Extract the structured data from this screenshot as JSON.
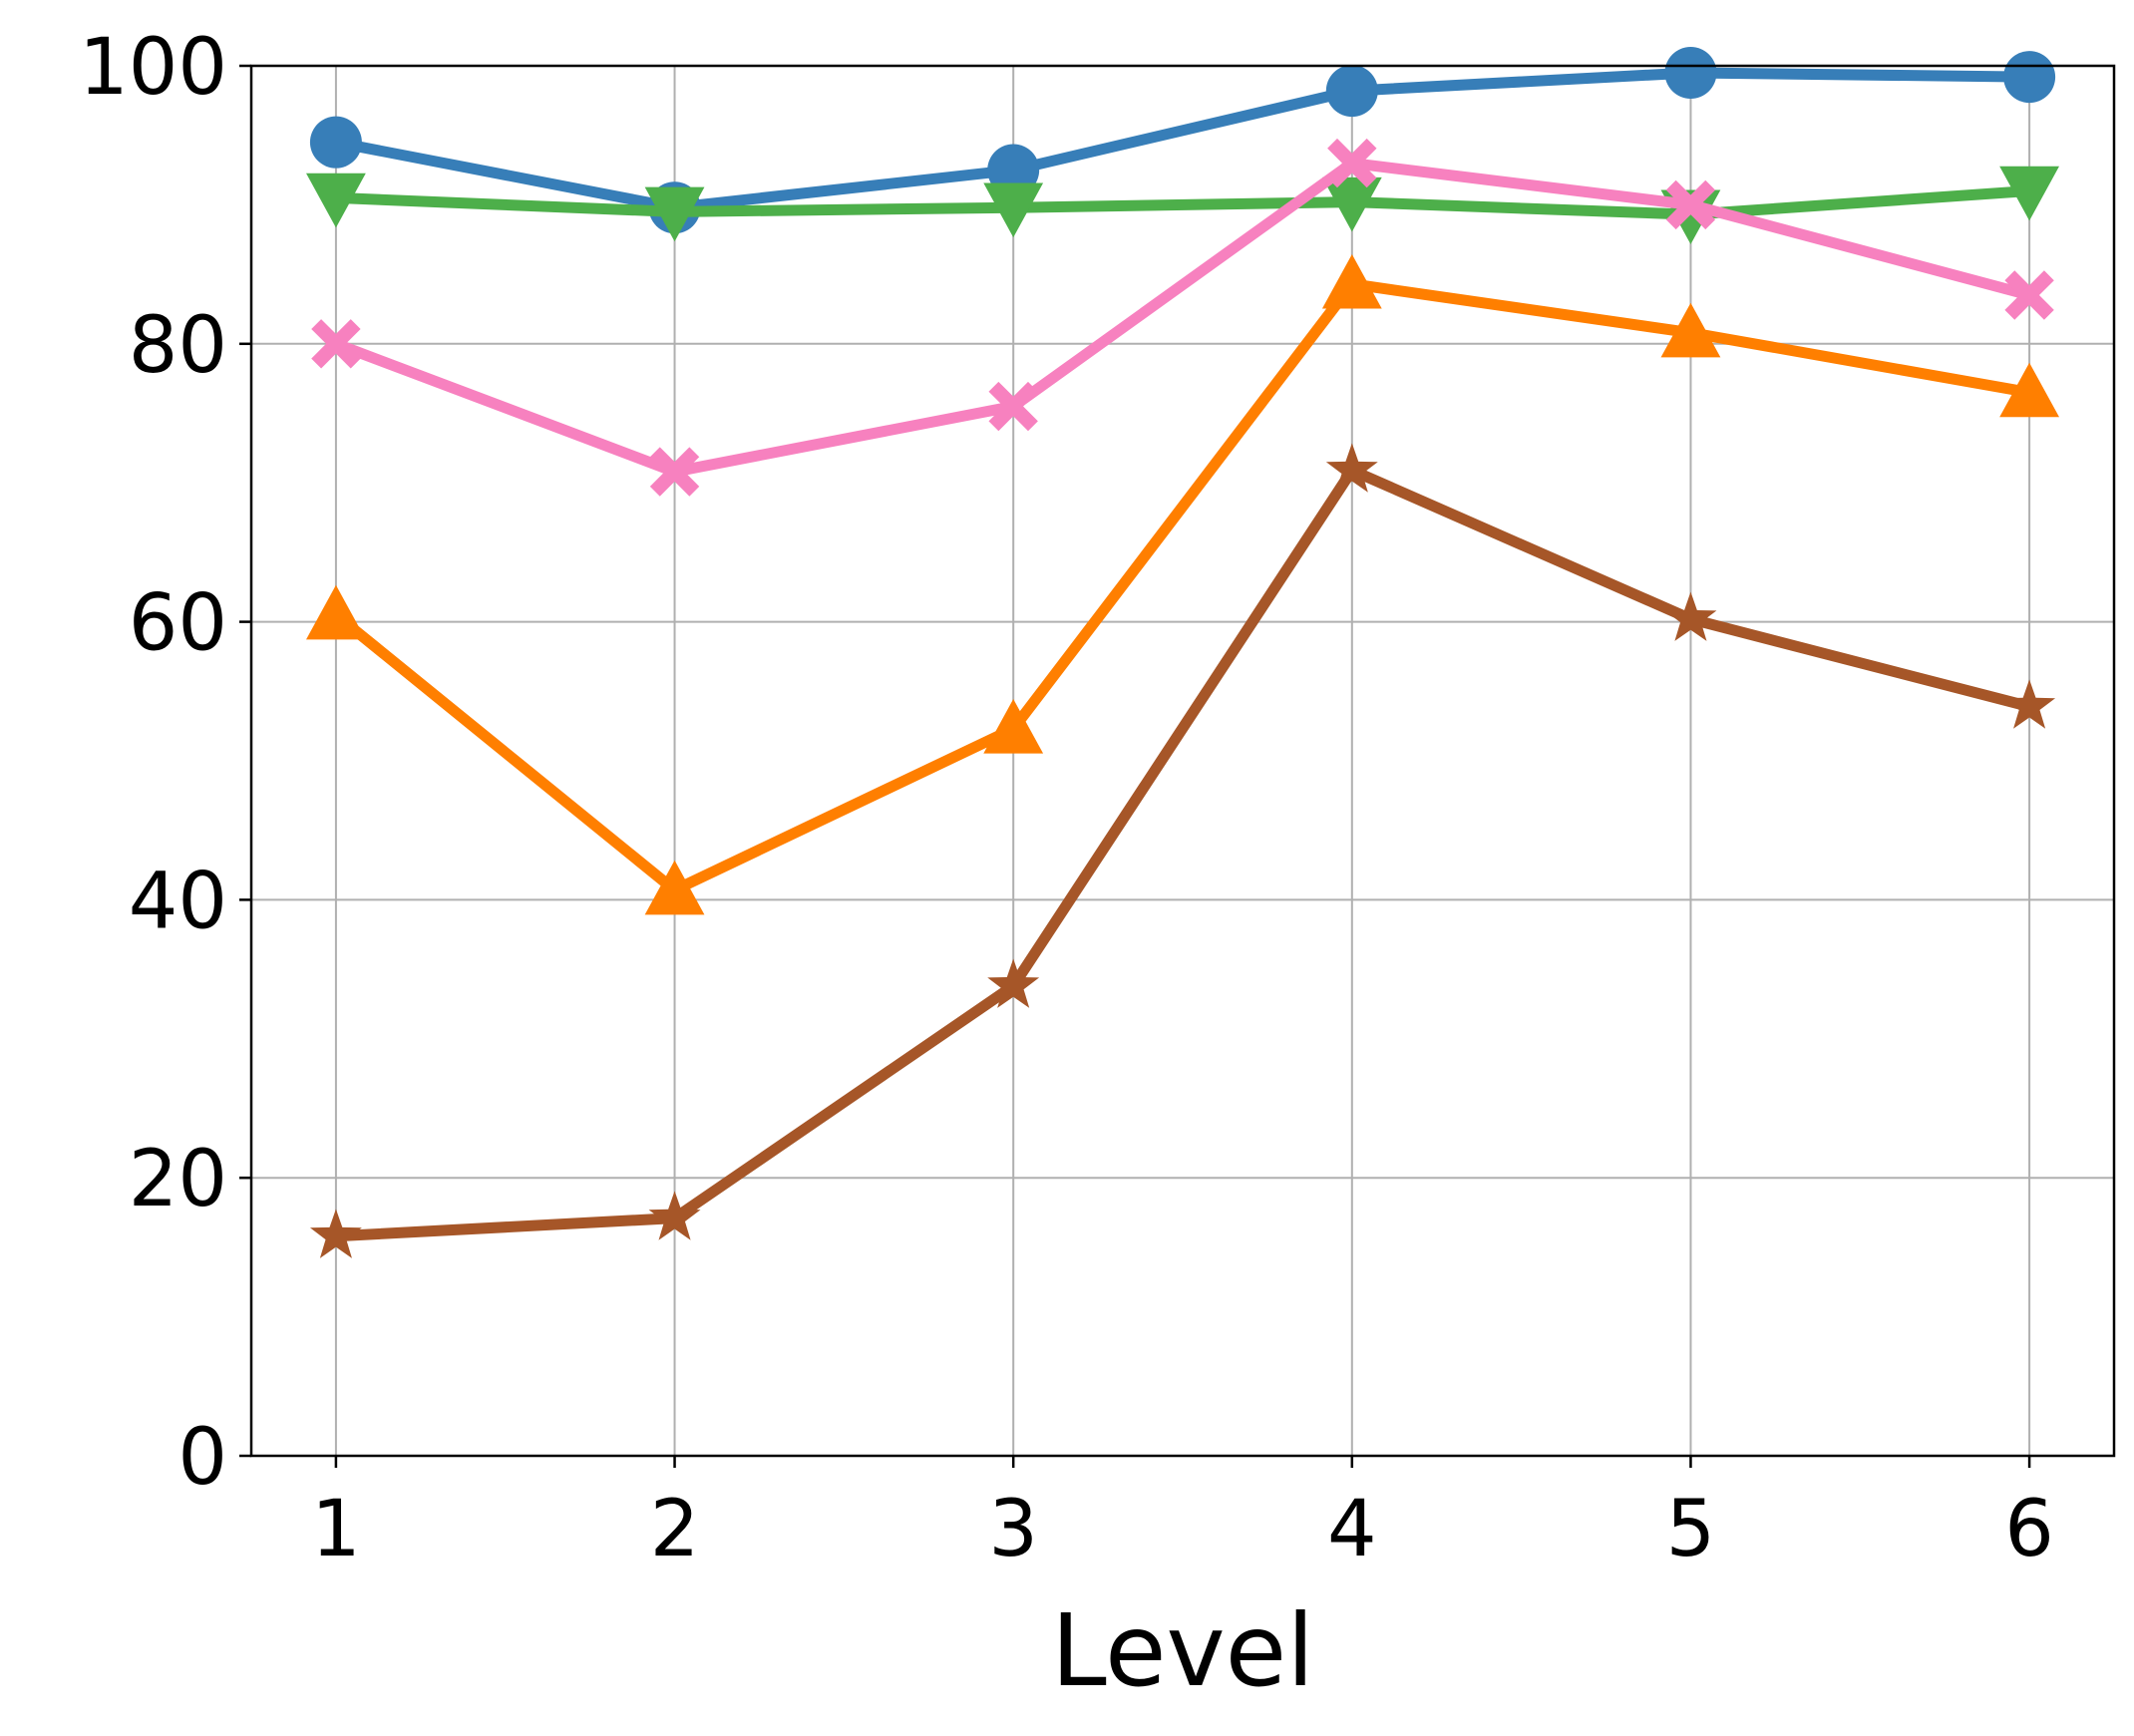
{
  "chart_data": {
    "type": "line",
    "xlabel": "Level",
    "ylabel": "",
    "x": [
      1,
      2,
      3,
      4,
      5,
      6
    ],
    "xticks": [
      "1",
      "2",
      "3",
      "4",
      "5",
      "6"
    ],
    "yticks": [
      "0",
      "20",
      "40",
      "60",
      "80",
      "100"
    ],
    "ylim": [
      0,
      100
    ],
    "xlim": [
      0.75,
      6.25
    ],
    "grid": true,
    "legend": "none",
    "series": [
      {
        "color": "#377eb8",
        "marker": "circle",
        "values": [
          94.5,
          89.8,
          92.5,
          98.2,
          99.5,
          99.2
        ]
      },
      {
        "color": "#4daf4a",
        "marker": "triangle-down",
        "values": [
          90.5,
          89.5,
          89.8,
          90.2,
          89.3,
          91.0
        ]
      },
      {
        "color": "#f781bf",
        "marker": "x",
        "values": [
          80.0,
          70.8,
          75.5,
          93.0,
          90.0,
          83.5
        ]
      },
      {
        "color": "#ff7f00",
        "marker": "triangle-up",
        "values": [
          60.5,
          40.7,
          52.3,
          84.3,
          80.8,
          76.5
        ]
      },
      {
        "color": "#a65628",
        "marker": "star",
        "values": [
          15.8,
          17.1,
          33.8,
          70.9,
          60.2,
          53.9
        ]
      }
    ]
  }
}
